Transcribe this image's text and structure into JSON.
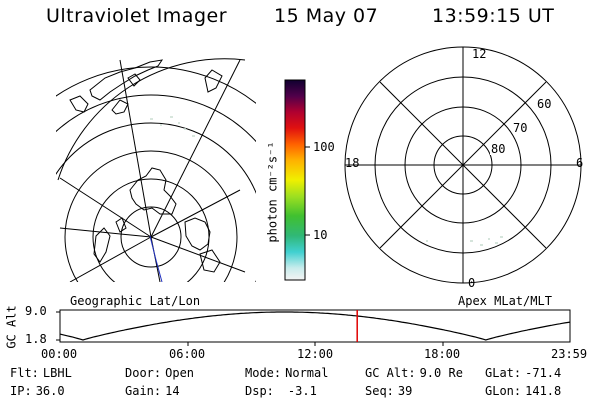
{
  "header": {
    "instrument": "Ultraviolet Imager",
    "date": "15 May 07",
    "time": "13:59:15 UT"
  },
  "colorbar": {
    "unit_label": "photon cm⁻²s⁻¹",
    "ticks": [
      "100",
      "10"
    ]
  },
  "left_map": {
    "label": "Geographic Lat/Lon"
  },
  "right_map": {
    "label": "Apex MLat/MLT",
    "mlt_labels": {
      "top": "12",
      "left": "18",
      "right": "6",
      "bottom": "0"
    },
    "mlat_labels": [
      "60",
      "70",
      "80"
    ]
  },
  "altitude_plot": {
    "ylabel": "GC Alt",
    "yticks": [
      "9.0",
      "1.8"
    ],
    "xticks": [
      "00:00",
      "06:00",
      "12:00",
      "18:00",
      "23:59"
    ],
    "marker_color": "#e00000"
  },
  "status": {
    "filter": {
      "label": "Flt:",
      "value": "LBHL"
    },
    "ip": {
      "label": "IP:",
      "value": "36.0"
    },
    "door": {
      "label": "Door:",
      "value": "Open"
    },
    "gain": {
      "label": "Gain:",
      "value": "14"
    },
    "mode": {
      "label": "Mode:",
      "value": "Normal"
    },
    "dsp": {
      "label": "Dsp:",
      "value": "-3.1"
    },
    "gc_alt": {
      "label": "GC Alt:",
      "value": "9.0 Re"
    },
    "seq": {
      "label": "Seq:",
      "value": "39"
    },
    "glat": {
      "label": "GLat:",
      "value": "-71.4"
    },
    "glon": {
      "label": "GLon:",
      "value": "141.8"
    }
  }
}
